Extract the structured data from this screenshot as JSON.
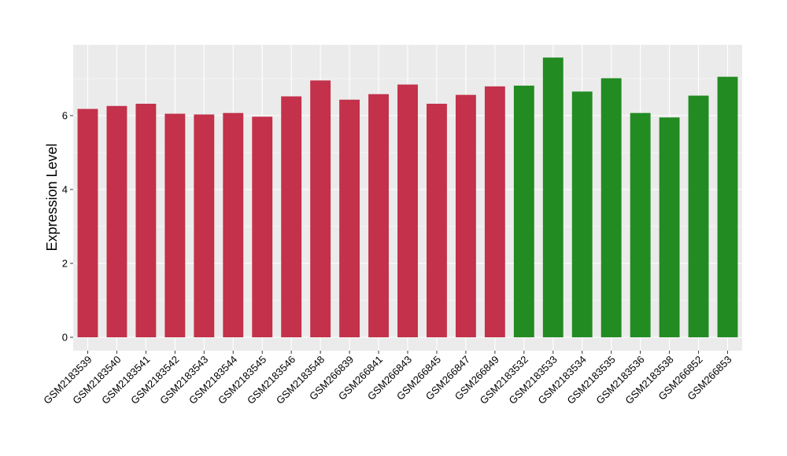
{
  "chart_data": {
    "type": "bar",
    "title": "",
    "xlabel": "",
    "ylabel": "Expression Level",
    "ylim": [
      0,
      8
    ],
    "yticks": [
      0,
      2,
      4,
      6
    ],
    "grid": true,
    "categories": [
      "GSM2183539",
      "GSM2183540",
      "GSM2183541",
      "GSM2183542",
      "GSM2183543",
      "GSM2183544",
      "GSM2183545",
      "GSM2183546",
      "GSM2183548",
      "GSM266839",
      "GSM266841",
      "GSM266843",
      "GSM266845",
      "GSM266847",
      "GSM266849",
      "GSM2183532",
      "GSM2183533",
      "GSM2183534",
      "GSM2183535",
      "GSM2183536",
      "GSM2183538",
      "GSM266852",
      "GSM266853"
    ],
    "values": [
      6.18,
      6.26,
      6.32,
      6.05,
      6.03,
      6.07,
      5.97,
      6.52,
      6.95,
      6.43,
      6.58,
      6.84,
      6.32,
      6.56,
      6.79,
      6.81,
      7.57,
      6.65,
      7.01,
      6.07,
      5.95,
      6.54,
      7.05
    ],
    "groups": [
      "a",
      "a",
      "a",
      "a",
      "a",
      "a",
      "a",
      "a",
      "a",
      "a",
      "a",
      "a",
      "a",
      "a",
      "a",
      "b",
      "b",
      "b",
      "b",
      "b",
      "b",
      "b",
      "b"
    ],
    "colors": {
      "a": "#c3314a",
      "b": "#228b22"
    },
    "panel_background": "#ebebeb",
    "gridline_color": "#ffffff"
  }
}
